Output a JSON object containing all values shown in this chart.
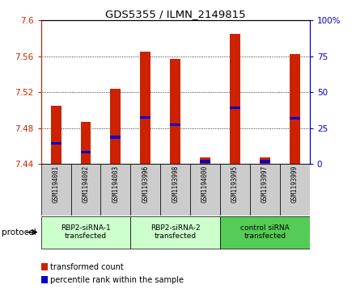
{
  "title": "GDS5355 / ILMN_2149815",
  "samples": [
    "GSM1194001",
    "GSM1194002",
    "GSM1194003",
    "GSM1193996",
    "GSM1193998",
    "GSM1194000",
    "GSM1193995",
    "GSM1193997",
    "GSM1193999"
  ],
  "red_values": [
    7.505,
    7.487,
    7.524,
    7.565,
    7.557,
    7.447,
    7.585,
    7.447,
    7.563
  ],
  "blue_values": [
    7.463,
    7.453,
    7.47,
    7.492,
    7.484,
    7.443,
    7.503,
    7.443,
    7.491
  ],
  "ylim": [
    7.44,
    7.6
  ],
  "yticks_left": [
    7.44,
    7.48,
    7.52,
    7.56,
    7.6
  ],
  "yticks_right": [
    0,
    25,
    50,
    75,
    100
  ],
  "left_color": "#cc2200",
  "right_color": "#0000cc",
  "bar_color": "#cc2200",
  "blue_color": "#0000cc",
  "bar_width": 0.35,
  "groups": [
    {
      "label": "RBP2-siRNA-1\ntransfected",
      "start": 0,
      "end": 3,
      "color": "#ccffcc"
    },
    {
      "label": "RBP2-siRNA-2\ntransfected",
      "start": 3,
      "end": 6,
      "color": "#ccffcc"
    },
    {
      "label": "control siRNA\ntransfected",
      "start": 6,
      "end": 9,
      "color": "#55cc55"
    }
  ],
  "protocol_label": "protocol",
  "background_color": "#ffffff",
  "tick_area_color": "#cccccc",
  "legend_items": [
    {
      "color": "#cc2200",
      "label": "transformed count"
    },
    {
      "color": "#0000cc",
      "label": "percentile rank within the sample"
    }
  ]
}
